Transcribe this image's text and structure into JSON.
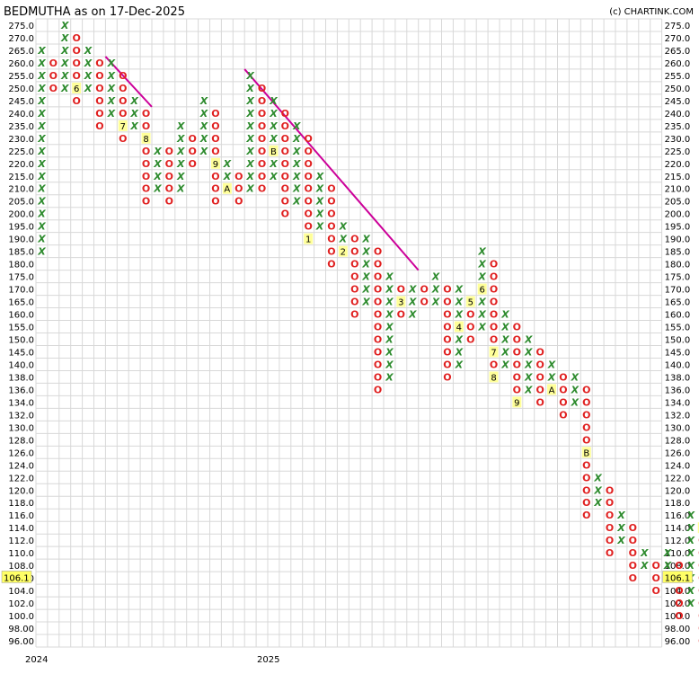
{
  "header": {
    "title": "BEDMUTHA as on 17-Dec-2025",
    "copyright": "(c) CHARTINK.COM"
  },
  "colors": {
    "x_color": "#2e8b2e",
    "o_color": "#e02020",
    "trendline": "#cc0099",
    "month_marker_bg": "#ffff99",
    "last_price_bg": "#ffff66",
    "grid": "#d8d8d8"
  },
  "chart_data": {
    "type": "point-and-figure",
    "title": "BEDMUTHA as on 17-Dec-2025",
    "y_ticks": [
      "275.0",
      "270.0",
      "265.0",
      "260.0",
      "255.0",
      "250.0",
      "245.0",
      "240.0",
      "235.0",
      "230.0",
      "225.0",
      "220.0",
      "215.0",
      "210.0",
      "205.0",
      "200.0",
      "195.0",
      "190.0",
      "185.0",
      "180.0",
      "175.0",
      "170.0",
      "165.0",
      "160.0",
      "155.0",
      "150.0",
      "145.0",
      "140.0",
      "138.0",
      "136.0",
      "134.0",
      "132.0",
      "130.0",
      "128.0",
      "126.0",
      "124.0",
      "122.0",
      "120.0",
      "118.0",
      "116.0",
      "114.0",
      "112.0",
      "110.0",
      "108.0",
      "106.0",
      "104.0",
      "102.0",
      "100.0",
      "98.00",
      "96.00"
    ],
    "last_price_label": "106.1",
    "x_year_labels": [
      {
        "label": "2024",
        "column": 0
      },
      {
        "label": "2025",
        "column": 20
      }
    ],
    "grid": true,
    "columns": [
      {
        "type": "X",
        "from": "185.0",
        "to": "265.0"
      },
      {
        "type": "O",
        "from": "250.0",
        "to": "260.0"
      },
      {
        "type": "X",
        "from": "250.0",
        "to": "275.0"
      },
      {
        "type": "O",
        "from": "245.0",
        "to": "270.0",
        "markers": [
          {
            "label": "6",
            "at": "250.0"
          }
        ]
      },
      {
        "type": "X",
        "from": "250.0",
        "to": "265.0"
      },
      {
        "type": "O",
        "from": "235.0",
        "to": "260.0"
      },
      {
        "type": "X",
        "from": "240.0",
        "to": "260.0"
      },
      {
        "type": "O",
        "from": "230.0",
        "to": "255.0",
        "markers": [
          {
            "label": "7",
            "at": "235.0"
          }
        ]
      },
      {
        "type": "X",
        "from": "235.0",
        "to": "245.0"
      },
      {
        "type": "O",
        "from": "205.0",
        "to": "240.0",
        "markers": [
          {
            "label": "8",
            "at": "230.0"
          }
        ]
      },
      {
        "type": "X",
        "from": "210.0",
        "to": "225.0"
      },
      {
        "type": "O",
        "from": "205.0",
        "to": "225.0"
      },
      {
        "type": "X",
        "from": "210.0",
        "to": "235.0"
      },
      {
        "type": "O",
        "from": "220.0",
        "to": "230.0"
      },
      {
        "type": "X",
        "from": "225.0",
        "to": "245.0"
      },
      {
        "type": "O",
        "from": "205.0",
        "to": "240.0",
        "markers": [
          {
            "label": "9",
            "at": "220.0"
          }
        ]
      },
      {
        "type": "X",
        "from": "210.0",
        "to": "220.0",
        "markers": [
          {
            "label": "A",
            "at": "210.0"
          }
        ]
      },
      {
        "type": "O",
        "from": "205.0",
        "to": "215.0"
      },
      {
        "type": "X",
        "from": "210.0",
        "to": "255.0"
      },
      {
        "type": "O",
        "from": "210.0",
        "to": "250.0"
      },
      {
        "type": "X",
        "from": "215.0",
        "to": "245.0",
        "markers": [
          {
            "label": "B",
            "at": "225.0"
          }
        ]
      },
      {
        "type": "O",
        "from": "200.0",
        "to": "240.0"
      },
      {
        "type": "X",
        "from": "205.0",
        "to": "235.0",
        "markers": [
          {
            "label": "C",
            "at": "200.0"
          }
        ]
      },
      {
        "type": "O",
        "from": "190.0",
        "to": "230.0",
        "markers": [
          {
            "label": "1",
            "at": "190.0"
          }
        ]
      },
      {
        "type": "X",
        "from": "195.0",
        "to": "215.0"
      },
      {
        "type": "O",
        "from": "180.0",
        "to": "210.0"
      },
      {
        "type": "X",
        "from": "185.0",
        "to": "195.0",
        "markers": [
          {
            "label": "2",
            "at": "185.0"
          }
        ]
      },
      {
        "type": "O",
        "from": "160.0",
        "to": "190.0"
      },
      {
        "type": "X",
        "from": "165.0",
        "to": "190.0"
      },
      {
        "type": "O",
        "from": "136.0",
        "to": "185.0"
      },
      {
        "type": "X",
        "from": "138.0",
        "to": "175.0"
      },
      {
        "type": "O",
        "from": "160.0",
        "to": "170.0",
        "markers": [
          {
            "label": "3",
            "at": "165.0"
          }
        ]
      },
      {
        "type": "X",
        "from": "160.0",
        "to": "170.0"
      },
      {
        "type": "O",
        "from": "165.0",
        "to": "170.0"
      },
      {
        "type": "X",
        "from": "165.0",
        "to": "175.0"
      },
      {
        "type": "O",
        "from": "138.0",
        "to": "170.0"
      },
      {
        "type": "X",
        "from": "140.0",
        "to": "170.0",
        "markers": [
          {
            "label": "4",
            "at": "155.0"
          }
        ]
      },
      {
        "type": "O",
        "from": "150.0",
        "to": "165.0",
        "markers": [
          {
            "label": "5",
            "at": "165.0"
          }
        ]
      },
      {
        "type": "X",
        "from": "155.0",
        "to": "185.0",
        "markers": [
          {
            "label": "6",
            "at": "170.0"
          }
        ]
      },
      {
        "type": "O",
        "from": "138.0",
        "to": "180.0",
        "markers": [
          {
            "label": "7",
            "at": "145.0"
          },
          {
            "label": "8",
            "at": "138.0"
          }
        ]
      },
      {
        "type": "X",
        "from": "140.0",
        "to": "160.0"
      },
      {
        "type": "O",
        "from": "134.0",
        "to": "155.0",
        "markers": [
          {
            "label": "9",
            "at": "134.0"
          }
        ]
      },
      {
        "type": "X",
        "from": "136.0",
        "to": "150.0"
      },
      {
        "type": "O",
        "from": "134.0",
        "to": "145.0"
      },
      {
        "type": "X",
        "from": "136.0",
        "to": "140.0",
        "markers": [
          {
            "label": "A",
            "at": "136.0"
          }
        ]
      },
      {
        "type": "O",
        "from": "132.0",
        "to": "138.0"
      },
      {
        "type": "X",
        "from": "134.0",
        "to": "138.0"
      },
      {
        "type": "O",
        "from": "116.0",
        "to": "136.0",
        "markers": [
          {
            "label": "B",
            "at": "126.0"
          }
        ]
      },
      {
        "type": "X",
        "from": "118.0",
        "to": "122.0"
      },
      {
        "type": "O",
        "from": "110.0",
        "to": "120.0"
      },
      {
        "type": "X",
        "from": "112.0",
        "to": "116.0"
      },
      {
        "type": "O",
        "from": "106.0",
        "to": "114.0"
      },
      {
        "type": "X",
        "from": "108.0",
        "to": "110.0"
      },
      {
        "type": "O",
        "from": "104.0",
        "to": "108.0"
      },
      {
        "type": "X",
        "from": "106.0",
        "to": "110.0"
      },
      {
        "type": "O",
        "from": "100.0",
        "to": "108.0"
      },
      {
        "type": "X",
        "from": "102.0",
        "to": "116.0"
      },
      {
        "type": "O",
        "from": "96.00",
        "to": "114.0",
        "markers": [
          {
            "label": "C",
            "at": "114.0"
          }
        ]
      },
      {
        "type": "X",
        "from": "98.00",
        "to": "108.0"
      }
    ],
    "trendlines": [
      {
        "from": {
          "column": 6,
          "price": "260.0"
        },
        "to": {
          "column": 10,
          "price": "240.0"
        }
      },
      {
        "from": {
          "column": 18,
          "price": "255.0"
        },
        "to": {
          "column": 33,
          "price": "175.0"
        }
      }
    ]
  }
}
